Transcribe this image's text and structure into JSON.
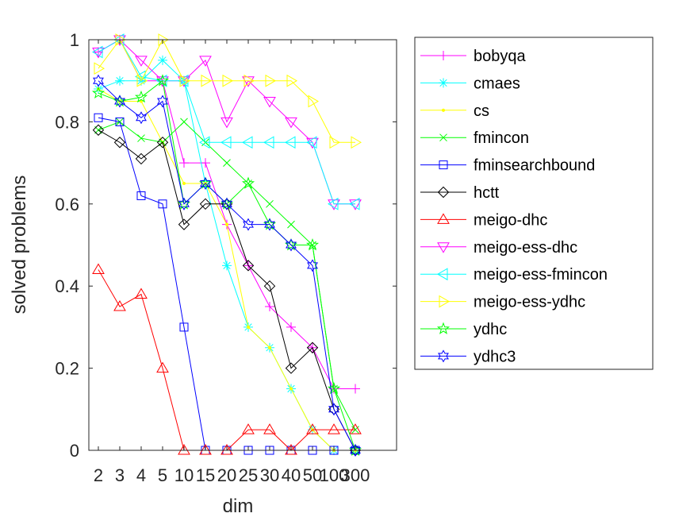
{
  "chart_data": {
    "type": "line",
    "xlabel": "dim",
    "ylabel": "solved problems",
    "categories": [
      "2",
      "3",
      "4",
      "5",
      "10",
      "15",
      "20",
      "25",
      "30",
      "40",
      "50",
      "100",
      "300"
    ],
    "ylim": [
      0,
      1
    ],
    "yticks": [
      "0",
      "0.2",
      "0.4",
      "0.6",
      "0.8",
      "1"
    ],
    "grid": false,
    "legend_position": "right",
    "series": [
      {
        "name": "bobyqa",
        "color": "#ff00ff",
        "marker": "plus",
        "values": [
          0.97,
          1.0,
          0.9,
          0.9,
          0.7,
          0.7,
          0.55,
          0.45,
          0.35,
          0.3,
          0.25,
          0.15,
          0.15
        ]
      },
      {
        "name": "cmaes",
        "color": "#00ffff",
        "marker": "asterisk",
        "values": [
          0.88,
          0.9,
          0.9,
          0.95,
          0.9,
          0.65,
          0.45,
          0.3,
          0.25,
          0.15,
          0.05,
          0,
          0
        ]
      },
      {
        "name": "cs",
        "color": "#ffff00",
        "marker": "point",
        "values": [
          0.88,
          0.85,
          0.85,
          0.75,
          0.65,
          0.65,
          0.55,
          0.3,
          0.25,
          0.15,
          0.05,
          0,
          0
        ]
      },
      {
        "name": "fmincon",
        "color": "#00ff00",
        "marker": "x",
        "values": [
          0.78,
          0.8,
          0.76,
          0.75,
          0.8,
          0.75,
          0.7,
          0.65,
          0.6,
          0.55,
          0.5,
          0.15,
          0.05
        ]
      },
      {
        "name": "fminsearchbound",
        "color": "#0000ff",
        "marker": "square",
        "values": [
          0.81,
          0.8,
          0.62,
          0.6,
          0.3,
          0,
          0,
          0,
          0,
          0,
          0,
          0,
          0
        ]
      },
      {
        "name": "hctt",
        "color": "#000000",
        "marker": "diamond",
        "values": [
          0.78,
          0.75,
          0.71,
          0.75,
          0.55,
          0.6,
          0.6,
          0.45,
          0.4,
          0.2,
          0.25,
          0.1,
          0
        ]
      },
      {
        "name": "meigo-dhc",
        "color": "#ff0000",
        "marker": "triangle-up",
        "values": [
          0.44,
          0.35,
          0.38,
          0.2,
          0,
          0,
          0,
          0.05,
          0.05,
          0,
          0.05,
          0.05,
          0.05
        ]
      },
      {
        "name": "meigo-ess-dhc",
        "color": "#ff00ff",
        "marker": "triangle-down",
        "values": [
          0.97,
          1.0,
          0.95,
          0.9,
          0.9,
          0.95,
          0.8,
          0.9,
          0.85,
          0.8,
          0.75,
          0.6,
          0.6
        ]
      },
      {
        "name": "meigo-ess-fmincon",
        "color": "#00ffff",
        "marker": "triangle-left",
        "values": [
          0.97,
          1.0,
          0.91,
          0.9,
          0.9,
          0.75,
          0.75,
          0.75,
          0.75,
          0.75,
          0.75,
          0.6,
          0.6
        ]
      },
      {
        "name": "meigo-ess-ydhc",
        "color": "#ffff00",
        "marker": "triangle-right",
        "values": [
          0.93,
          1.0,
          0.9,
          1.0,
          0.9,
          0.9,
          0.9,
          0.9,
          0.9,
          0.9,
          0.85,
          0.75,
          0.75
        ]
      },
      {
        "name": "ydhc",
        "color": "#00ff00",
        "marker": "pentagram",
        "values": [
          0.87,
          0.85,
          0.86,
          0.9,
          0.6,
          0.65,
          0.6,
          0.65,
          0.55,
          0.5,
          0.5,
          0.15,
          0
        ]
      },
      {
        "name": "ydhc3",
        "color": "#0000ff",
        "marker": "hexagram",
        "values": [
          0.9,
          0.85,
          0.81,
          0.85,
          0.6,
          0.65,
          0.6,
          0.55,
          0.55,
          0.5,
          0.45,
          0.1,
          0
        ]
      }
    ]
  }
}
